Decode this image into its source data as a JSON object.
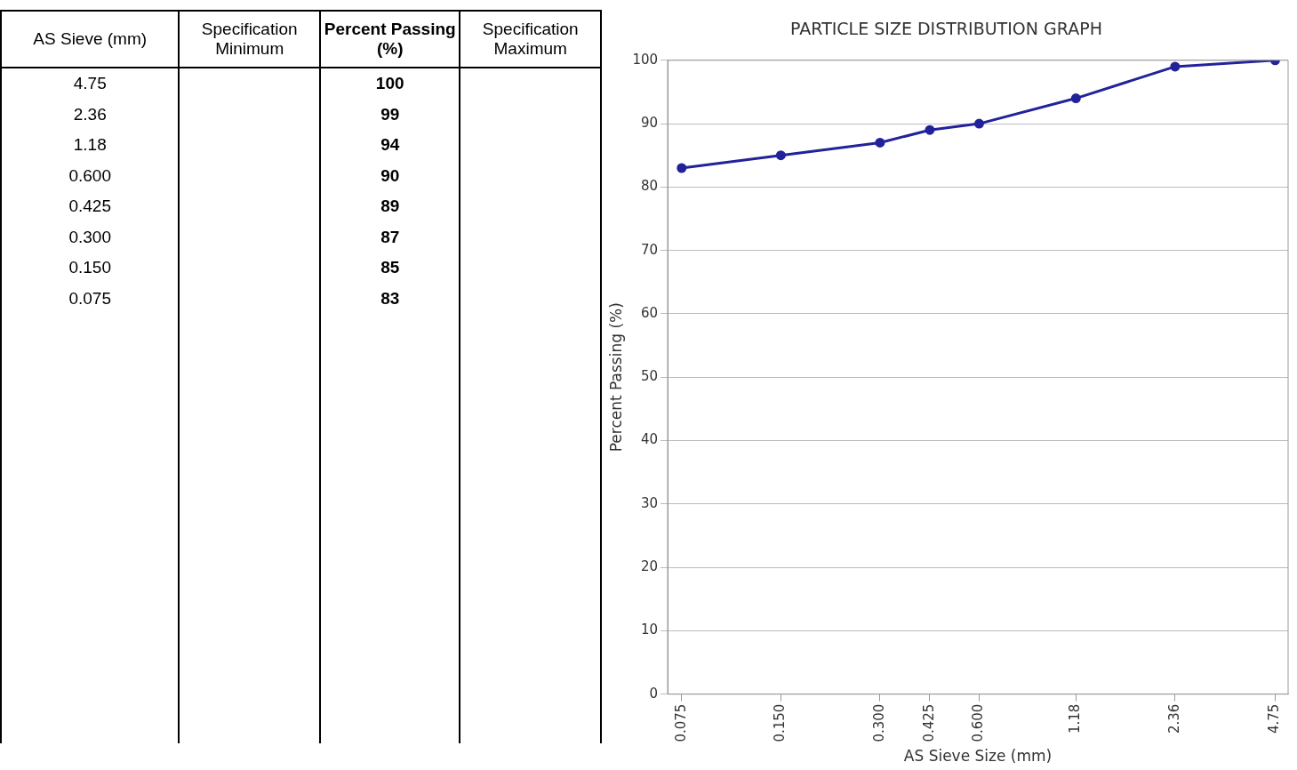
{
  "chart_data": [
    {
      "type": "other",
      "annotations": [
        "AS Sieve (mm)",
        "Specification Minimum",
        "Percent Passing (%)",
        "Specification Maximum"
      ],
      "categories": [
        "4.75",
        "2.36",
        "1.18",
        "0.600",
        "0.425",
        "0.300",
        "0.150",
        "0.075"
      ],
      "values": [
        100,
        99,
        94,
        90,
        89,
        87,
        85,
        83
      ],
      "data_labels": true
    },
    {
      "type": "line",
      "title": "PARTICLE SIZE DISTRIBUTION GRAPH",
      "xlabel": "AS Sieve Size (mm)",
      "ylabel": "Percent Passing (%)",
      "x": [
        0.075,
        0.15,
        0.3,
        0.425,
        0.6,
        1.18,
        2.36,
        4.75
      ],
      "series": [
        {
          "color": "#22229a",
          "values": [
            83,
            85,
            87,
            89,
            90,
            94,
            99,
            100
          ]
        }
      ],
      "log": "x",
      "xlim": [
        0.068,
        5.2
      ],
      "xticks": [
        {
          "value": 0.075,
          "label": "0.075"
        },
        {
          "value": 0.15,
          "label": "0.150"
        },
        {
          "value": 0.3,
          "label": "0.300"
        },
        {
          "value": 0.425,
          "label": "0.425"
        },
        {
          "value": 0.6,
          "label": "0.600"
        },
        {
          "value": 1.18,
          "label": "1.18"
        },
        {
          "value": 2.36,
          "label": "2.36"
        },
        {
          "value": 4.75,
          "label": "4.75"
        }
      ],
      "ylim": [
        0,
        100
      ],
      "yticks": [
        0,
        10,
        20,
        30,
        40,
        50,
        60,
        70,
        80,
        90,
        100
      ],
      "grid": "y",
      "marker": "circle",
      "line_style": "solid"
    }
  ]
}
